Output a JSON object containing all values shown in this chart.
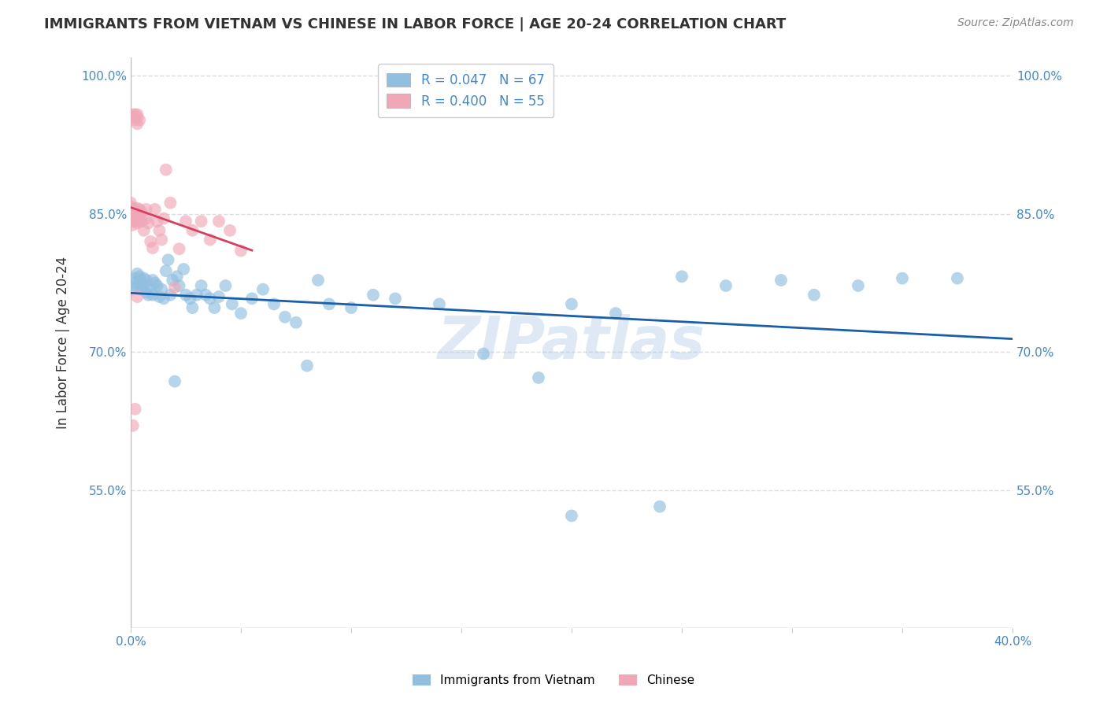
{
  "title": "IMMIGRANTS FROM VIETNAM VS CHINESE IN LABOR FORCE | AGE 20-24 CORRELATION CHART",
  "source": "Source: ZipAtlas.com",
  "ylabel": "In Labor Force | Age 20-24",
  "xlim": [
    0.0,
    0.4
  ],
  "ylim": [
    0.4,
    1.02
  ],
  "xtick_positions": [
    0.0,
    0.05,
    0.1,
    0.15,
    0.2,
    0.25,
    0.3,
    0.35,
    0.4
  ],
  "xtick_labels": [
    "0.0%",
    "",
    "",
    "",
    "",
    "",
    "",
    "",
    "40.0%"
  ],
  "ytick_positions": [
    0.55,
    0.7,
    0.85,
    1.0
  ],
  "ytick_labels": [
    "55.0%",
    "70.0%",
    "85.0%",
    "100.0%"
  ],
  "legend_text_row1": "R = 0.047   N = 67",
  "legend_text_row2": "R = 0.400   N = 55",
  "blue_color": "#91bfe0",
  "pink_color": "#f0a8b8",
  "trend_blue": "#1a5fa8",
  "trend_pink": "#d44060",
  "watermark": "ZIPatlas",
  "blue_scatter_x": [
    0.001,
    0.002,
    0.002,
    0.003,
    0.003,
    0.004,
    0.004,
    0.005,
    0.005,
    0.006,
    0.006,
    0.007,
    0.007,
    0.008,
    0.009,
    0.01,
    0.01,
    0.011,
    0.012,
    0.013,
    0.014,
    0.015,
    0.016,
    0.017,
    0.018,
    0.019,
    0.02,
    0.021,
    0.022,
    0.024,
    0.025,
    0.027,
    0.028,
    0.03,
    0.032,
    0.034,
    0.036,
    0.038,
    0.04,
    0.043,
    0.046,
    0.05,
    0.055,
    0.06,
    0.065,
    0.07,
    0.075,
    0.08,
    0.085,
    0.09,
    0.1,
    0.11,
    0.12,
    0.14,
    0.16,
    0.185,
    0.2,
    0.22,
    0.25,
    0.27,
    0.295,
    0.31,
    0.33,
    0.35,
    0.375,
    0.2,
    0.24
  ],
  "blue_scatter_y": [
    0.77,
    0.78,
    0.775,
    0.785,
    0.77,
    0.778,
    0.782,
    0.768,
    0.775,
    0.772,
    0.78,
    0.765,
    0.778,
    0.762,
    0.768,
    0.778,
    0.762,
    0.775,
    0.772,
    0.76,
    0.768,
    0.758,
    0.788,
    0.8,
    0.762,
    0.778,
    0.668,
    0.782,
    0.772,
    0.79,
    0.762,
    0.758,
    0.748,
    0.762,
    0.772,
    0.762,
    0.758,
    0.748,
    0.76,
    0.772,
    0.752,
    0.742,
    0.758,
    0.768,
    0.752,
    0.738,
    0.732,
    0.685,
    0.778,
    0.752,
    0.748,
    0.762,
    0.758,
    0.752,
    0.698,
    0.672,
    0.752,
    0.742,
    0.782,
    0.772,
    0.778,
    0.762,
    0.772,
    0.78,
    0.78,
    0.522,
    0.532
  ],
  "pink_scatter_x": [
    0.0,
    0.0,
    0.0,
    0.001,
    0.001,
    0.001,
    0.001,
    0.001,
    0.002,
    0.002,
    0.002,
    0.002,
    0.002,
    0.003,
    0.003,
    0.003,
    0.003,
    0.004,
    0.004,
    0.004,
    0.005,
    0.005,
    0.006,
    0.007,
    0.007,
    0.008,
    0.009,
    0.01,
    0.011,
    0.012,
    0.013,
    0.014,
    0.015,
    0.016,
    0.018,
    0.02,
    0.022,
    0.025,
    0.028,
    0.032,
    0.036,
    0.04,
    0.045,
    0.05,
    0.001,
    0.001,
    0.002,
    0.002,
    0.003,
    0.003,
    0.003,
    0.004,
    0.003,
    0.001,
    0.002
  ],
  "pink_scatter_y": [
    0.855,
    0.862,
    0.858,
    0.856,
    0.85,
    0.845,
    0.842,
    0.838,
    0.852,
    0.847,
    0.842,
    0.855,
    0.848,
    0.856,
    0.85,
    0.845,
    0.84,
    0.855,
    0.85,
    0.842,
    0.852,
    0.842,
    0.832,
    0.855,
    0.845,
    0.84,
    0.82,
    0.813,
    0.855,
    0.842,
    0.832,
    0.822,
    0.845,
    0.898,
    0.862,
    0.77,
    0.812,
    0.842,
    0.832,
    0.842,
    0.822,
    0.842,
    0.832,
    0.81,
    0.958,
    0.955,
    0.958,
    0.952,
    0.955,
    0.948,
    0.958,
    0.952,
    0.76,
    0.62,
    0.638
  ]
}
